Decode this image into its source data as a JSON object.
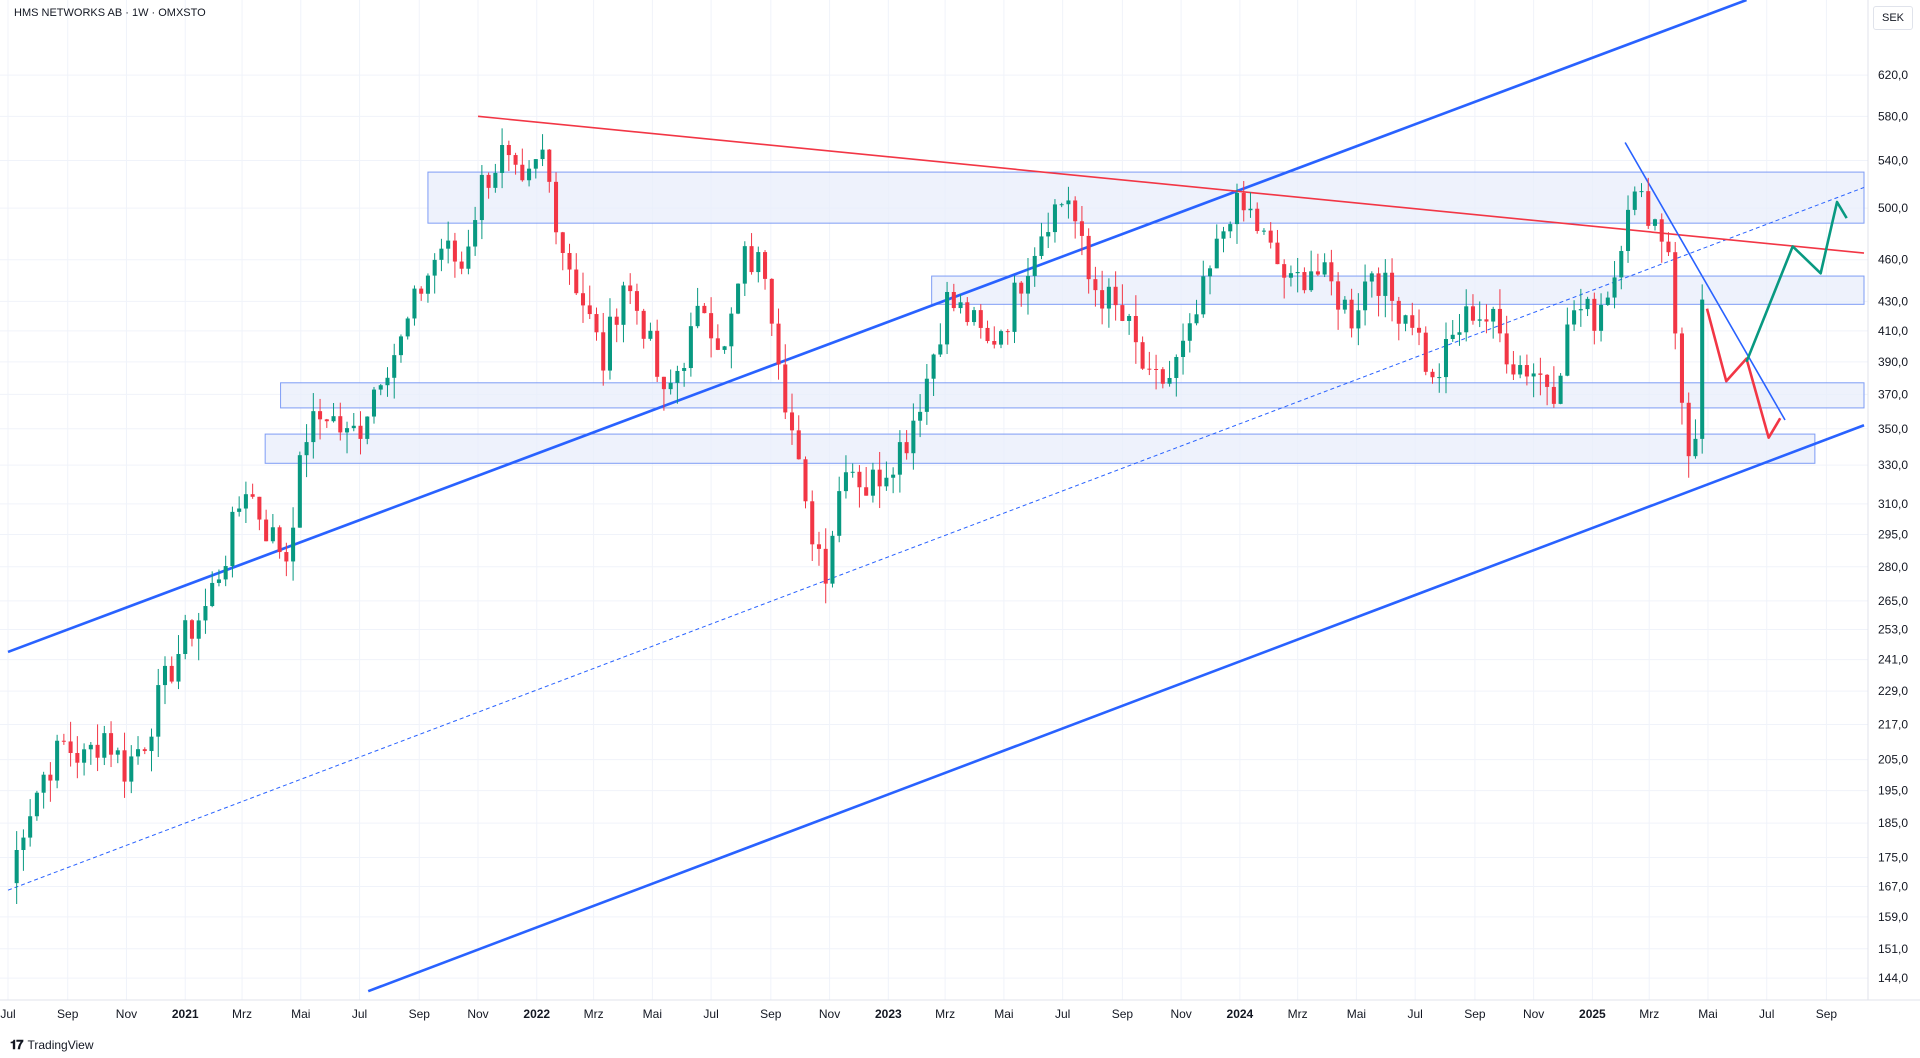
{
  "header": {
    "ticker": "HMS NETWORKS AB · 1W · OMXSTO",
    "currency": "SEK"
  },
  "footer": {
    "brand": "TradingView",
    "brand_icon": "tradingview-logo-icon"
  },
  "colors": {
    "up": "#089981",
    "down": "#f23645",
    "blue_line": "#2962ff",
    "red_line": "#f23645",
    "zone_fill": "#e8edfb",
    "zone_stroke": "#7e9cf5"
  },
  "chart_data": {
    "type": "candlestick",
    "title": "",
    "y_scale": "log",
    "ylim": [
      139,
      700
    ],
    "y_ticks": [
      144,
      151,
      159,
      167,
      175,
      185,
      195,
      205,
      217,
      229,
      241,
      253,
      265,
      280,
      295,
      310,
      330,
      350,
      370,
      390,
      410,
      430,
      460,
      500,
      540,
      580,
      620
    ],
    "y_tick_labels": [
      "144,0",
      "151,0",
      "159,0",
      "167,0",
      "175,0",
      "185,0",
      "195,0",
      "205,0",
      "217,0",
      "229,0",
      "241,0",
      "253,0",
      "265,0",
      "280,0",
      "295,0",
      "310,0",
      "330,0",
      "350,0",
      "370,0",
      "390,0",
      "410,0",
      "430,0",
      "460,0",
      "500,0",
      "540,0",
      "580,0",
      "620,0"
    ],
    "x_range": [
      "2020-07-01",
      "2025-10-10"
    ],
    "x_ticks": [
      {
        "date": "2020-07-01",
        "label": "Jul"
      },
      {
        "date": "2020-09-01",
        "label": "Sep"
      },
      {
        "date": "2020-11-01",
        "label": "Nov"
      },
      {
        "date": "2021-01-01",
        "label": "2021",
        "major": true
      },
      {
        "date": "2021-03-01",
        "label": "Mrz"
      },
      {
        "date": "2021-05-01",
        "label": "Mai"
      },
      {
        "date": "2021-07-01",
        "label": "Jul"
      },
      {
        "date": "2021-09-01",
        "label": "Sep"
      },
      {
        "date": "2021-11-01",
        "label": "Nov"
      },
      {
        "date": "2022-01-01",
        "label": "2022",
        "major": true
      },
      {
        "date": "2022-03-01",
        "label": "Mrz"
      },
      {
        "date": "2022-05-01",
        "label": "Mai"
      },
      {
        "date": "2022-07-01",
        "label": "Jul"
      },
      {
        "date": "2022-09-01",
        "label": "Sep"
      },
      {
        "date": "2022-11-01",
        "label": "Nov"
      },
      {
        "date": "2023-01-01",
        "label": "2023",
        "major": true
      },
      {
        "date": "2023-03-01",
        "label": "Mrz"
      },
      {
        "date": "2023-05-01",
        "label": "Mai"
      },
      {
        "date": "2023-07-01",
        "label": "Jul"
      },
      {
        "date": "2023-09-01",
        "label": "Sep"
      },
      {
        "date": "2023-11-01",
        "label": "Nov"
      },
      {
        "date": "2024-01-01",
        "label": "2024",
        "major": true
      },
      {
        "date": "2024-03-01",
        "label": "Mrz"
      },
      {
        "date": "2024-05-01",
        "label": "Mai"
      },
      {
        "date": "2024-07-01",
        "label": "Jul"
      },
      {
        "date": "2024-09-01",
        "label": "Sep"
      },
      {
        "date": "2024-11-01",
        "label": "Nov"
      },
      {
        "date": "2025-01-01",
        "label": "2025",
        "major": true
      },
      {
        "date": "2025-03-01",
        "label": "Mrz"
      },
      {
        "date": "2025-05-01",
        "label": "Mai"
      },
      {
        "date": "2025-07-01",
        "label": "Jul"
      },
      {
        "date": "2025-09-01",
        "label": "Sep"
      }
    ],
    "grid": true,
    "weekly_close_path": [
      [
        "2020-07-03",
        168
      ],
      [
        "2020-07-17",
        185
      ],
      [
        "2020-08-07",
        200
      ],
      [
        "2020-08-28",
        210
      ],
      [
        "2020-09-18",
        205
      ],
      [
        "2020-10-09",
        214
      ],
      [
        "2020-10-30",
        202
      ],
      [
        "2020-11-20",
        212
      ],
      [
        "2020-12-11",
        232
      ],
      [
        "2021-01-01",
        250
      ],
      [
        "2021-01-22",
        262
      ],
      [
        "2021-02-12",
        286
      ],
      [
        "2021-03-05",
        320
      ],
      [
        "2021-03-26",
        298
      ],
      [
        "2021-04-16",
        285
      ],
      [
        "2021-05-07",
        348
      ],
      [
        "2021-05-28",
        360
      ],
      [
        "2021-06-18",
        345
      ],
      [
        "2021-07-02",
        352
      ],
      [
        "2021-07-23",
        385
      ],
      [
        "2021-08-13",
        402
      ],
      [
        "2021-09-03",
        440
      ],
      [
        "2021-09-24",
        470
      ],
      [
        "2021-10-15",
        455
      ],
      [
        "2021-11-05",
        520
      ],
      [
        "2021-11-26",
        545
      ],
      [
        "2021-12-17",
        510
      ],
      [
        "2022-01-07",
        545
      ],
      [
        "2022-01-28",
        470
      ],
      [
        "2022-02-18",
        430
      ],
      [
        "2022-03-11",
        390
      ],
      [
        "2022-04-01",
        445
      ],
      [
        "2022-04-22",
        415
      ],
      [
        "2022-05-13",
        365
      ],
      [
        "2022-06-03",
        395
      ],
      [
        "2022-06-24",
        428
      ],
      [
        "2022-07-15",
        395
      ],
      [
        "2022-08-05",
        460
      ],
      [
        "2022-08-26",
        455
      ],
      [
        "2022-09-16",
        370
      ],
      [
        "2022-10-07",
        305
      ],
      [
        "2022-10-28",
        280
      ],
      [
        "2022-11-18",
        335
      ],
      [
        "2022-12-09",
        318
      ],
      [
        "2022-12-30",
        330
      ],
      [
        "2023-01-20",
        345
      ],
      [
        "2023-02-10",
        380
      ],
      [
        "2023-03-03",
        430
      ],
      [
        "2023-03-24",
        420
      ],
      [
        "2023-04-14",
        400
      ],
      [
        "2023-05-05",
        420
      ],
      [
        "2023-05-26",
        460
      ],
      [
        "2023-06-16",
        495
      ],
      [
        "2023-07-07",
        510
      ],
      [
        "2023-07-28",
        445
      ],
      [
        "2023-08-18",
        430
      ],
      [
        "2023-09-08",
        410
      ],
      [
        "2023-09-29",
        375
      ],
      [
        "2023-10-20",
        380
      ],
      [
        "2023-11-10",
        405
      ],
      [
        "2023-12-01",
        450
      ],
      [
        "2023-12-22",
        500
      ],
      [
        "2024-01-12",
        495
      ],
      [
        "2024-02-02",
        465
      ],
      [
        "2024-02-23",
        440
      ],
      [
        "2024-03-15",
        455
      ],
      [
        "2024-04-05",
        440
      ],
      [
        "2024-04-26",
        420
      ],
      [
        "2024-05-17",
        455
      ],
      [
        "2024-06-07",
        430
      ],
      [
        "2024-06-28",
        420
      ],
      [
        "2024-07-19",
        375
      ],
      [
        "2024-08-09",
        405
      ],
      [
        "2024-08-30",
        425
      ],
      [
        "2024-09-20",
        415
      ],
      [
        "2024-10-11",
        390
      ],
      [
        "2024-11-01",
        385
      ],
      [
        "2024-11-22",
        375
      ],
      [
        "2024-12-13",
        425
      ],
      [
        "2025-01-03",
        420
      ],
      [
        "2025-01-24",
        450
      ],
      [
        "2025-02-07",
        510
      ],
      [
        "2025-02-28",
        500
      ],
      [
        "2025-03-21",
        470
      ],
      [
        "2025-04-04",
        360
      ],
      [
        "2025-04-11",
        335
      ],
      [
        "2025-04-18",
        350
      ],
      [
        "2025-04-25",
        428
      ]
    ],
    "horizontal_zones": [
      {
        "name": "resistance-zone-top",
        "from": "2021-09-10",
        "to": "2025-10-10",
        "low": 488,
        "high": 530
      },
      {
        "name": "resistance-zone-mid",
        "from": "2023-02-15",
        "to": "2025-10-10",
        "low": 428,
        "high": 448
      },
      {
        "name": "support-zone-upper",
        "from": "2021-04-10",
        "to": "2025-10-10",
        "low": 362,
        "high": 377
      },
      {
        "name": "support-zone-lower",
        "from": "2021-03-25",
        "to": "2025-08-20",
        "low": 331,
        "high": 347
      }
    ],
    "trend_lines": [
      {
        "name": "upper-channel-line",
        "color": "blue",
        "style": "solid",
        "points": [
          [
            "2020-07-01",
            244
          ],
          [
            "2025-06-10",
            700
          ]
        ]
      },
      {
        "name": "lower-channel-line",
        "color": "blue",
        "style": "solid",
        "points": [
          [
            "2021-07-10",
            141
          ],
          [
            "2025-10-10",
            352
          ]
        ]
      },
      {
        "name": "mid-channel-line",
        "color": "blue",
        "style": "dashed",
        "points": [
          [
            "2020-07-01",
            166
          ],
          [
            "2025-10-10",
            517
          ]
        ]
      },
      {
        "name": "long-term-resistance",
        "color": "red",
        "style": "solid",
        "points": [
          [
            "2021-11-01",
            580
          ],
          [
            "2025-10-10",
            465
          ]
        ]
      },
      {
        "name": "short-term-down-trend",
        "color": "blue",
        "style": "solid",
        "points": [
          [
            "2025-02-04",
            556
          ],
          [
            "2025-07-20",
            355
          ]
        ]
      }
    ],
    "projections": [
      {
        "name": "bearish-path",
        "color": "red",
        "points": [
          [
            "2025-04-30",
            425
          ],
          [
            "2025-05-20",
            378
          ],
          [
            "2025-06-10",
            392
          ],
          [
            "2025-07-03",
            345
          ],
          [
            "2025-07-15",
            356
          ]
        ]
      },
      {
        "name": "bullish-path",
        "color": "green",
        "points": [
          [
            "2025-06-10",
            390
          ],
          [
            "2025-07-28",
            470
          ],
          [
            "2025-08-26",
            450
          ],
          [
            "2025-09-12",
            505
          ],
          [
            "2025-09-22",
            492
          ]
        ]
      }
    ]
  }
}
